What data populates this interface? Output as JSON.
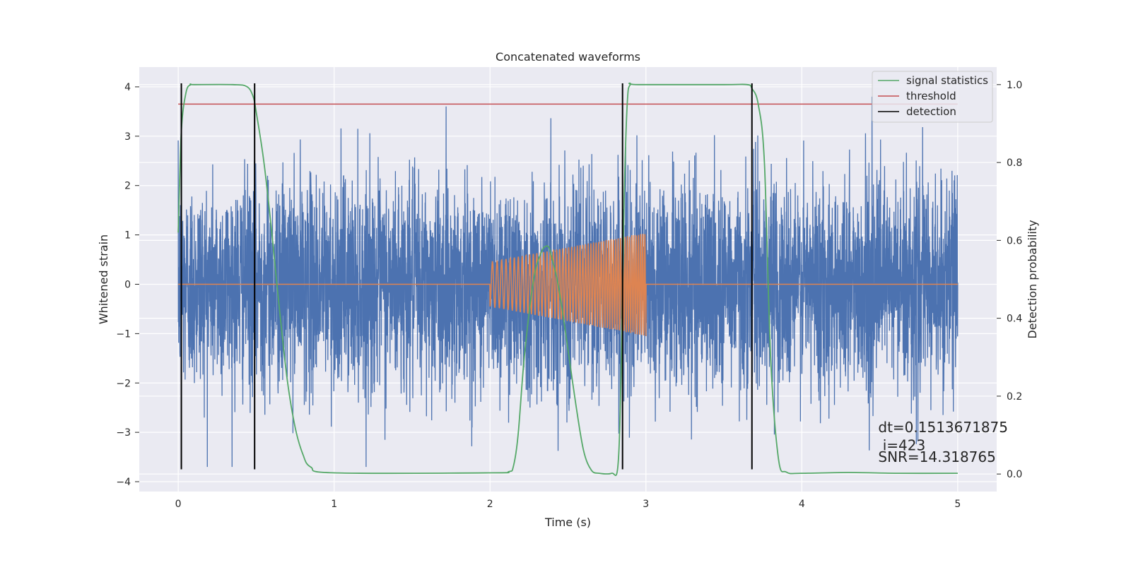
{
  "chart_data": {
    "type": "line",
    "title": "Concatenated waveforms",
    "xlabel": "Time (s)",
    "ylabel": "Whitened strain",
    "y2label": "Detection probability",
    "xlim": [
      -0.25,
      5.25
    ],
    "ylim": [
      -4.2,
      4.4
    ],
    "y2lim": [
      -0.045,
      1.045
    ],
    "xticks": [
      0,
      1,
      2,
      3,
      4,
      5
    ],
    "yticks": [
      4,
      3,
      2,
      1,
      0,
      -1,
      -2,
      -3,
      -4
    ],
    "yticklabels": [
      "4",
      "3",
      "2",
      "1",
      "0",
      "−1",
      "−2",
      "−3",
      "−4"
    ],
    "y2ticks": [
      1.0,
      0.8,
      0.6,
      0.4,
      0.2,
      0.0
    ],
    "y2ticklabels": [
      "1.0",
      "0.8",
      "0.6",
      "0.4",
      "0.2",
      "0.0"
    ],
    "grid": true,
    "legend_position": "top-right",
    "legend": [
      {
        "label": "signal statistics",
        "color": "#55a868"
      },
      {
        "label": "threshold",
        "color": "#c44e52"
      },
      {
        "label": "detection",
        "color": "#000000"
      }
    ],
    "series": [
      {
        "kind": "noise",
        "color": "#4c72b0",
        "x_range": [
          0,
          5
        ],
        "typical_amplitude": 1.0,
        "peak_range": [
          -3.7,
          3.8
        ]
      },
      {
        "kind": "chirp",
        "color": "#dd8452",
        "x_range": [
          0,
          5
        ],
        "chirp_range": [
          2.0,
          3.0
        ],
        "amplitude_start": 0.45,
        "amplitude_end": 1.05
      },
      {
        "name": "signal statistics",
        "axis": "right",
        "color": "#55a868",
        "x": [
          0.0,
          0.02,
          0.05,
          0.08,
          0.1,
          0.35,
          0.44,
          0.48,
          0.5,
          0.55,
          0.6,
          0.65,
          0.7,
          0.75,
          0.8,
          0.85,
          1.0,
          2.0,
          2.12,
          2.15,
          2.18,
          2.22,
          2.28,
          2.33,
          2.36,
          2.38,
          2.4,
          2.43,
          2.46,
          2.5,
          2.55,
          2.6,
          2.65,
          2.7,
          2.78,
          2.82,
          2.84,
          2.86,
          2.88,
          2.9,
          2.95,
          3.5,
          3.65,
          3.68,
          3.72,
          3.76,
          3.8,
          3.85,
          3.9,
          4.0,
          4.3,
          4.6,
          5.0
        ],
        "values": [
          0.62,
          0.88,
          0.98,
          1.0,
          1.0,
          1.0,
          0.995,
          0.97,
          0.93,
          0.8,
          0.62,
          0.42,
          0.24,
          0.12,
          0.05,
          0.018,
          0.003,
          0.003,
          0.006,
          0.02,
          0.1,
          0.3,
          0.5,
          0.57,
          0.585,
          0.58,
          0.55,
          0.5,
          0.43,
          0.32,
          0.18,
          0.06,
          0.01,
          0.002,
          0.002,
          0.02,
          0.25,
          0.7,
          0.95,
          1.0,
          1.0,
          1.0,
          1.0,
          0.99,
          0.95,
          0.8,
          0.3,
          0.04,
          0.005,
          0.002,
          0.004,
          0.002,
          0.002
        ]
      },
      {
        "name": "threshold",
        "axis": "right",
        "color": "#c44e52",
        "x": [
          0.0,
          5.0
        ],
        "values": [
          0.95,
          0.95
        ]
      }
    ],
    "detections": {
      "color": "#000000",
      "x": [
        0.02,
        0.49,
        2.85,
        3.68
      ],
      "ymin": -3.75,
      "ymax": 4.07
    },
    "annotations": [
      {
        "text": "dt=0.1513671875",
        "x": 4.49,
        "y": -3.0
      },
      {
        "text": " i=423",
        "x": 4.49,
        "y": -3.36
      },
      {
        "text": "SNR=14.318765",
        "x": 4.49,
        "y": -3.6
      }
    ]
  }
}
